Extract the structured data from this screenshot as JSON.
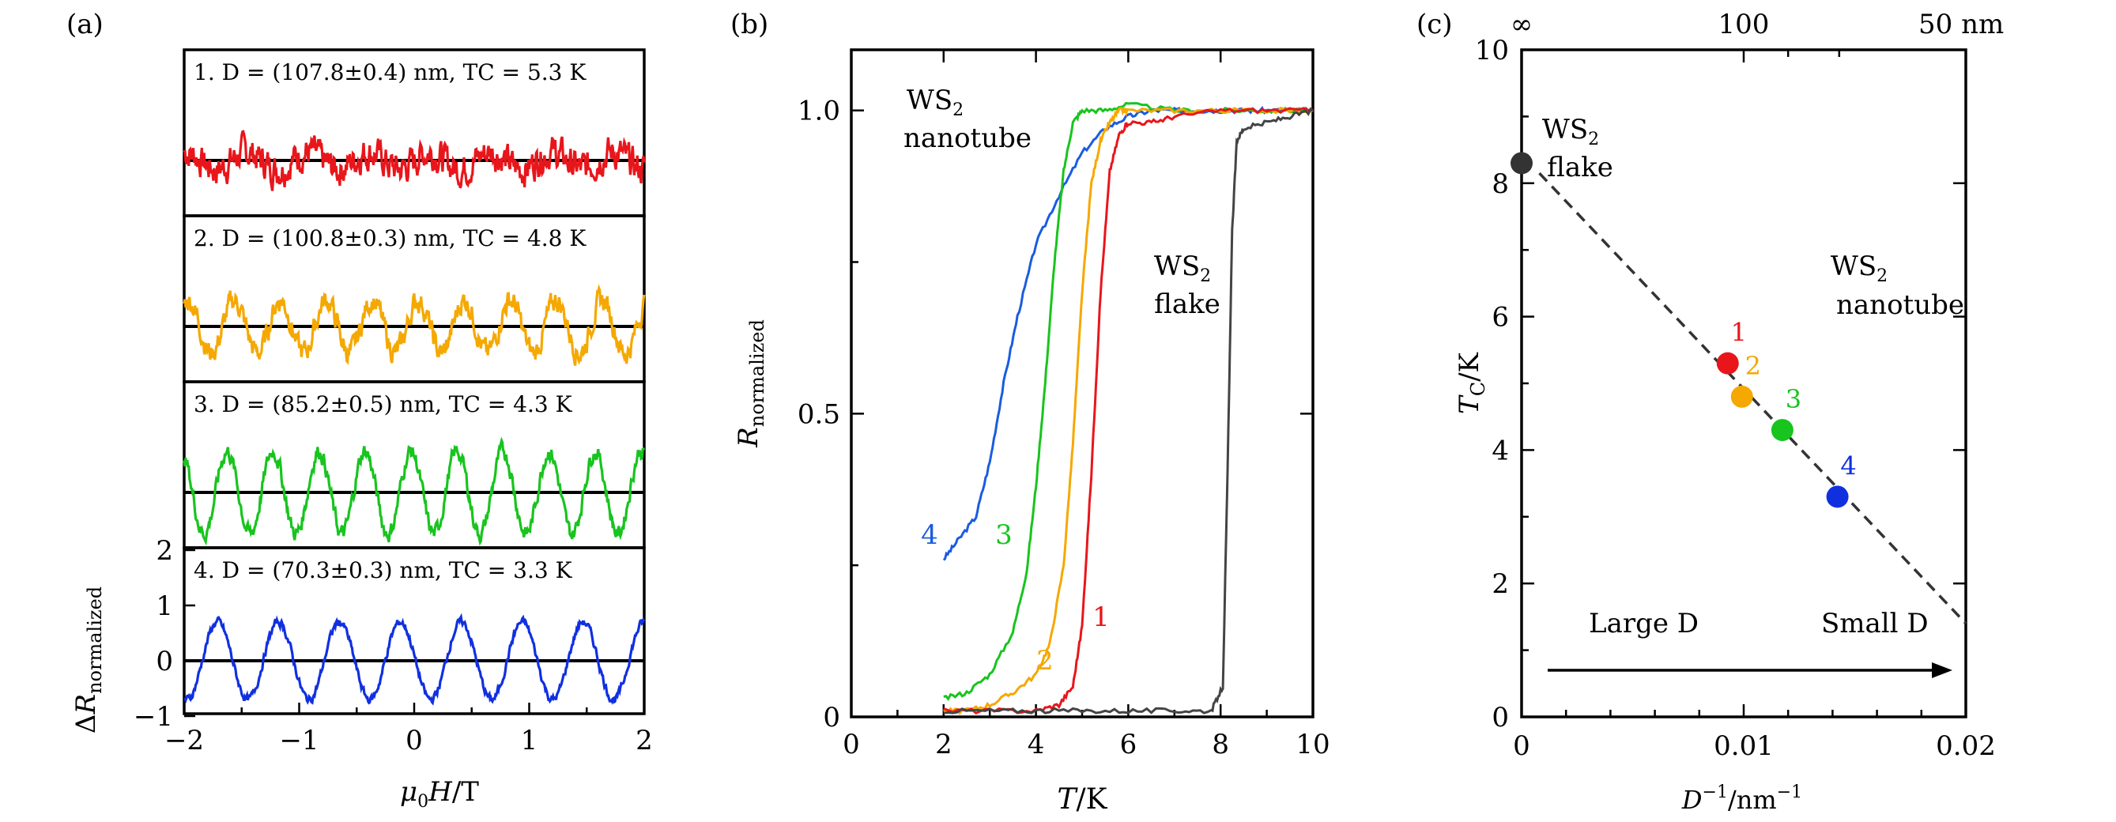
{
  "panels": {
    "a": "(a)",
    "b": "(b)",
    "c": "(c)"
  },
  "chart_data": [
    {
      "type": "line",
      "panel": "(a)",
      "xlabel": "μ0H/T",
      "ylabel": "ΔR_normalized",
      "xlim": [
        -2,
        2
      ],
      "ylim": [
        -1,
        2
      ],
      "xticks": [
        "−2",
        "−1",
        "0",
        "1",
        "2"
      ],
      "yticks": [
        "−1",
        "0",
        "1",
        "2"
      ],
      "subplots": [
        {
          "label": "1. D = (107.8±0.4) nm, TC = 5.3 K",
          "color": "#e8161b",
          "amplitude": 0.28,
          "period": 0.53,
          "noise": 0.35
        },
        {
          "label": "2. D = (100.8±0.3) nm, TC = 4.8 K",
          "color": "#f5a800",
          "amplitude": 0.35,
          "period": 0.4,
          "noise": 0.25
        },
        {
          "label": "3. D = (85.2±0.5) nm, TC = 4.3 K",
          "color": "#18c41e",
          "amplitude": 0.55,
          "period": 0.4,
          "noise": 0.18
        },
        {
          "label": "4. D = (70.3±0.3) nm, TC = 3.3 K",
          "color": "#1030e0",
          "amplitude": 0.7,
          "period": 0.53,
          "noise": 0.12
        }
      ]
    },
    {
      "type": "line",
      "panel": "(b)",
      "xlabel": "T/K",
      "ylabel": "R_normalized",
      "xlim": [
        0,
        10
      ],
      "ylim": [
        0,
        1.1
      ],
      "xticks": [
        "0",
        "2",
        "4",
        "6",
        "8",
        "10"
      ],
      "yticks": [
        "0",
        "0.5",
        "1.0"
      ],
      "annotations": {
        "nanotube_line1": "WS2",
        "nanotube_line2": "nanotube",
        "flake_line1": "WS2",
        "flake_line2": "flake"
      },
      "series": [
        {
          "name": "4",
          "color": "#1a5ce0",
          "x": [
            2,
            2.3,
            2.7,
            3,
            3.3,
            3.6,
            4,
            4.5,
            5,
            5.5,
            6,
            6.5,
            7,
            7.5,
            8,
            8.5,
            9,
            9.5,
            10
          ],
          "y": [
            0.26,
            0.29,
            0.33,
            0.42,
            0.55,
            0.66,
            0.78,
            0.86,
            0.93,
            0.97,
            0.99,
            1.0,
            1.0,
            1.0,
            1.0,
            1.0,
            1.0,
            1.0,
            1.0
          ]
        },
        {
          "name": "3",
          "color": "#18c41e",
          "x": [
            2,
            2.5,
            3,
            3.5,
            3.8,
            4.0,
            4.2,
            4.4,
            4.6,
            4.8,
            5,
            5.5,
            6,
            7,
            8,
            9,
            10
          ],
          "y": [
            0.03,
            0.04,
            0.07,
            0.14,
            0.24,
            0.38,
            0.55,
            0.75,
            0.9,
            0.98,
            1.0,
            1.0,
            1.01,
            1.0,
            1.0,
            1.0,
            1.0
          ]
        },
        {
          "name": "2",
          "color": "#f5a800",
          "x": [
            2,
            2.5,
            3,
            3.5,
            4,
            4.3,
            4.6,
            4.8,
            5,
            5.2,
            5.4,
            5.6,
            5.8,
            6,
            7,
            8,
            9,
            10
          ],
          "y": [
            0.01,
            0.01,
            0.02,
            0.04,
            0.07,
            0.12,
            0.25,
            0.45,
            0.7,
            0.88,
            0.95,
            0.98,
            1.0,
            1.0,
            1.0,
            1.0,
            1.0,
            1.0
          ]
        },
        {
          "name": "1",
          "color": "#e8161b",
          "x": [
            2,
            3,
            4,
            4.5,
            4.8,
            5,
            5.2,
            5.4,
            5.6,
            5.8,
            6,
            6.5,
            7,
            8,
            9,
            10
          ],
          "y": [
            0.01,
            0.01,
            0.01,
            0.02,
            0.05,
            0.15,
            0.4,
            0.7,
            0.9,
            0.96,
            0.98,
            0.98,
            0.99,
            1.0,
            1.0,
            1.0
          ]
        },
        {
          "name": "flake",
          "color": "#444444",
          "x": [
            2,
            3,
            4,
            5,
            6,
            7,
            7.8,
            8.05,
            8.15,
            8.25,
            8.35,
            8.5,
            9,
            9.5,
            10
          ],
          "y": [
            0.01,
            0.01,
            0.01,
            0.01,
            0.01,
            0.01,
            0.01,
            0.05,
            0.4,
            0.8,
            0.95,
            0.97,
            0.98,
            0.99,
            1.0
          ]
        }
      ]
    },
    {
      "type": "scatter",
      "panel": "(c)",
      "xlabel": "D^-1/nm^-1",
      "ylabel": "TC/K",
      "xlim": [
        0,
        0.02
      ],
      "ylim": [
        0,
        10
      ],
      "xticks": [
        "0",
        "0.01",
        "0.02"
      ],
      "yticks": [
        "0",
        "2",
        "4",
        "6",
        "8",
        "10"
      ],
      "top_axis": [
        {
          "value": 0,
          "label": "∞"
        },
        {
          "value": 0.01,
          "label": "100"
        },
        {
          "value": 0.02,
          "label": "50 nm"
        }
      ],
      "points": [
        {
          "label": "",
          "x": 0,
          "y": 8.3,
          "color": "#333333"
        },
        {
          "label": "1",
          "x": 0.00928,
          "y": 5.3,
          "color": "#e8161b"
        },
        {
          "label": "2",
          "x": 0.00992,
          "y": 4.8,
          "color": "#f5a800"
        },
        {
          "label": "3",
          "x": 0.01174,
          "y": 4.3,
          "color": "#18c41e"
        },
        {
          "label": "4",
          "x": 0.01422,
          "y": 3.3,
          "color": "#1030e0"
        }
      ],
      "fit_line": {
        "x": [
          0.0008,
          0.0205
        ],
        "y": [
          8.15,
          1.4
        ]
      },
      "annotations": {
        "flake_line1": "WS2",
        "flake_line2": "flake",
        "nanotube_line1": "WS2",
        "nanotube_line2": "nanotube",
        "large": "Large D",
        "small": "Small D"
      }
    }
  ]
}
